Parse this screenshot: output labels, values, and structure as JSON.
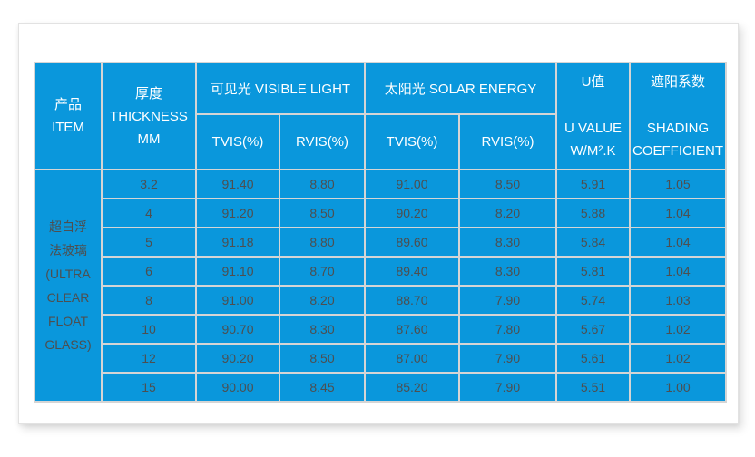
{
  "colors": {
    "accent_blue": "#0a97dc",
    "grid_line": "#d5d5d5",
    "header_text": "#ffffff",
    "data_text": "#4d4f50",
    "card_background": "#ffffff"
  },
  "table": {
    "header": {
      "item": {
        "zh": "产品",
        "en": "ITEM"
      },
      "thickness": {
        "zh": "厚度",
        "en": "THICKNESS",
        "unit": "MM"
      },
      "visible_light": {
        "group": "可见光  VISIBLE LIGHT",
        "cols": [
          "TVIS(%)",
          "RVIS(%)"
        ]
      },
      "solar_energy": {
        "group": "太阳光  SOLAR ENERGY",
        "cols": [
          "TVIS(%)",
          "RVIS(%)"
        ]
      },
      "u_value": {
        "zh": "U值",
        "en": "U VALUE",
        "unit": "W/M².K"
      },
      "shading": {
        "zh": "遮阳系数",
        "en1": "SHADING",
        "en2": "COEFFICIENT"
      }
    },
    "product_name_full": "超白浮法玻璃(ULTRA CLEAR FLOAT GLASS)",
    "product_display": "超白浮\n法玻璃\n(ULTRA\nCLEAR\nFLOAT\nGLASS)",
    "rows": [
      {
        "mm": "3.2",
        "vl_tvis": "91.40",
        "vl_rvis": "8.80",
        "se_tvis": "91.00",
        "se_rvis": "8.50",
        "u": "5.91",
        "sc": "1.05"
      },
      {
        "mm": "4",
        "vl_tvis": "91.20",
        "vl_rvis": "8.50",
        "se_tvis": "90.20",
        "se_rvis": "8.20",
        "u": "5.88",
        "sc": "1.04"
      },
      {
        "mm": "5",
        "vl_tvis": "91.18",
        "vl_rvis": "8.80",
        "se_tvis": "89.60",
        "se_rvis": "8.30",
        "u": "5.84",
        "sc": "1.04"
      },
      {
        "mm": "6",
        "vl_tvis": "91.10",
        "vl_rvis": "8.70",
        "se_tvis": "89.40",
        "se_rvis": "8.30",
        "u": "5.81",
        "sc": "1.04"
      },
      {
        "mm": "8",
        "vl_tvis": "91.00",
        "vl_rvis": "8.20",
        "se_tvis": "88.70",
        "se_rvis": "7.90",
        "u": "5.74",
        "sc": "1.03"
      },
      {
        "mm": "10",
        "vl_tvis": "90.70",
        "vl_rvis": "8.30",
        "se_tvis": "87.60",
        "se_rvis": "7.80",
        "u": "5.67",
        "sc": "1.02"
      },
      {
        "mm": "12",
        "vl_tvis": "90.20",
        "vl_rvis": "8.50",
        "se_tvis": "87.00",
        "se_rvis": "7.90",
        "u": "5.61",
        "sc": "1.02"
      },
      {
        "mm": "15",
        "vl_tvis": "90.00",
        "vl_rvis": "8.45",
        "se_tvis": "85.20",
        "se_rvis": "7.90",
        "u": "5.51",
        "sc": "1.00"
      }
    ]
  }
}
